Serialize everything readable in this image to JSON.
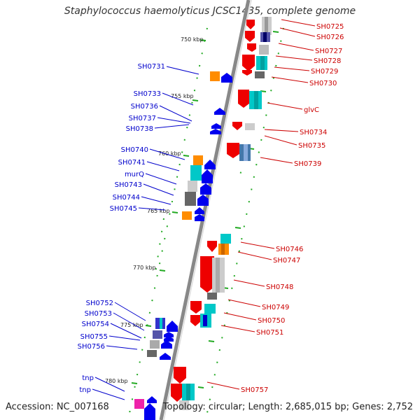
{
  "title": "Staphylococcus haemolyticus JCSC1435, complete genome",
  "accession": "Accession: NC_007168",
  "topology": "Topology: circular; Length: 2,685,015 bp; Genes: 2,752",
  "scale_labels": [
    "750 kbp",
    "755 kbp",
    "760 kbp",
    "765 kbp",
    "770 kbp",
    "775 kbp",
    "780 kbp"
  ],
  "colors": {
    "forward_label": "#cc0000",
    "reverse_label": "#0000cc",
    "forward_gene": "#ee0000",
    "reverse_gene": "#0000ee",
    "backbone": "#777777",
    "tick": "#22aa22"
  },
  "reverse_genes": [
    "SH0731",
    "SH0733",
    "SH0736",
    "SH0737",
    "SH0738",
    "SH0740",
    "SH0741",
    "murQ",
    "SH0743",
    "SH0744",
    "SH0745",
    "SH0752",
    "SH0753",
    "SH0754",
    "SH0755",
    "SH0756",
    "tnp",
    "tnp"
  ],
  "forward_genes": [
    "SH0725",
    "SH0726",
    "SH0727",
    "SH0728",
    "SH0729",
    "SH0730",
    "glvC",
    "SH0734",
    "SH0735",
    "SH0739",
    "SH0746",
    "SH0747",
    "SH0748",
    "SH0749",
    "SH0750",
    "SH0751",
    "SH0757"
  ]
}
